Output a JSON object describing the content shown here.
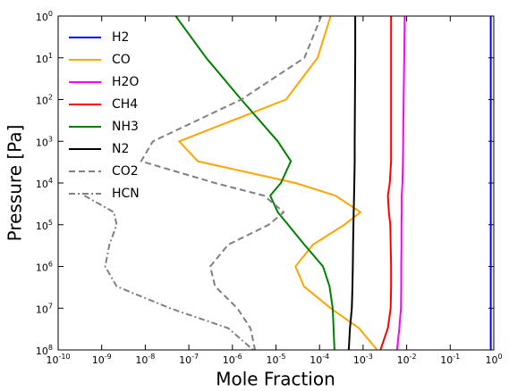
{
  "chart_data": {
    "type": "line",
    "xlabel": "Mole Fraction",
    "ylabel": "Pressure [Pa]",
    "xscale": "log",
    "yscale": "log",
    "y_inverted": true,
    "xlim": [
      1e-10,
      1
    ],
    "ylim": [
      1,
      100000000
    ],
    "xticks": [
      {
        "value": 1e-10,
        "label": "10^-10"
      },
      {
        "value": 1e-09,
        "label": "10^-9"
      },
      {
        "value": 1e-08,
        "label": "10^-8"
      },
      {
        "value": 1e-07,
        "label": "10^-7"
      },
      {
        "value": 1e-06,
        "label": "10^-6"
      },
      {
        "value": 1e-05,
        "label": "10^-5"
      },
      {
        "value": 0.0001,
        "label": "10^-4"
      },
      {
        "value": 0.001,
        "label": "10^-3"
      },
      {
        "value": 0.01,
        "label": "10^-2"
      },
      {
        "value": 0.1,
        "label": "10^-1"
      },
      {
        "value": 1,
        "label": "10^0"
      }
    ],
    "yticks": [
      {
        "value": 1,
        "label": "10^0"
      },
      {
        "value": 10,
        "label": "10^1"
      },
      {
        "value": 100,
        "label": "10^2"
      },
      {
        "value": 1000,
        "label": "10^3"
      },
      {
        "value": 10000,
        "label": "10^4"
      },
      {
        "value": 100000,
        "label": "10^5"
      },
      {
        "value": 1000000,
        "label": "10^6"
      },
      {
        "value": 10000000,
        "label": "10^7"
      },
      {
        "value": 100000000,
        "label": "10^8"
      }
    ],
    "legend": "upper left",
    "y": [
      1,
      10,
      100,
      1000,
      3000,
      10000,
      20000,
      50000,
      100000,
      300000,
      1000000,
      3000000,
      10000000,
      30000000,
      100000000
    ],
    "series": [
      {
        "name": "H2",
        "color": "#0000ff",
        "dash": "solid",
        "values": [
          0.85,
          0.85,
          0.85,
          0.85,
          0.85,
          0.85,
          0.85,
          0.85,
          0.85,
          0.85,
          0.85,
          0.85,
          0.85,
          0.85,
          0.85
        ]
      },
      {
        "name": "CO",
        "color": "#ffa500",
        "dash": "solid",
        "values": [
          0.00018,
          9e-05,
          1.7e-05,
          6e-08,
          1.6e-07,
          2.8e-05,
          0.00023,
          0.00087,
          0.00037,
          7e-05,
          2.8e-05,
          4.4e-05,
          0.00018,
          0.0008,
          0.0021
        ]
      },
      {
        "name": "H2O",
        "color": "#ff00ff",
        "dash": "solid",
        "values": [
          0.009,
          0.0088,
          0.0085,
          0.0083,
          0.0082,
          0.008,
          0.0077,
          0.0077,
          0.0076,
          0.0076,
          0.0075,
          0.0075,
          0.0074,
          0.0068,
          0.006
        ]
      },
      {
        "name": "CH4",
        "color": "#ff0000",
        "dash": "solid",
        "values": [
          0.0044,
          0.0044,
          0.0044,
          0.0044,
          0.0044,
          0.0041,
          0.0037,
          0.0039,
          0.0042,
          0.0043,
          0.0044,
          0.0044,
          0.0043,
          0.0037,
          0.0025
        ]
      },
      {
        "name": "NH3",
        "color": "#008000",
        "dash": "solid",
        "values": [
          5e-08,
          2.5e-07,
          1.6e-06,
          1.1e-05,
          2.2e-05,
          1.3e-05,
          7.4e-06,
          1.1e-05,
          1.9e-05,
          4.5e-05,
          0.00012,
          0.00017,
          0.0002,
          0.00021,
          0.00022
        ]
      },
      {
        "name": "N2",
        "color": "#000000",
        "dash": "solid",
        "values": [
          0.00066,
          0.00066,
          0.00065,
          0.00064,
          0.00064,
          0.00063,
          0.00062,
          0.00061,
          0.0006,
          0.00059,
          0.00058,
          0.00057,
          0.00055,
          0.0005,
          0.00047
        ]
      },
      {
        "name": "CO2",
        "color": "#808080",
        "dash": "dashed",
        "values": [
          0.00011,
          4.5e-05,
          1.6e-06,
          1.5e-08,
          8e-09,
          4e-07,
          5.3e-06,
          1.5e-05,
          6.8e-06,
          8e-07,
          3.1e-07,
          4e-07,
          1.3e-06,
          2.6e-06,
          3.3e-06
        ]
      },
      {
        "name": "HCN",
        "color": "#808080",
        "dash": "dashdot",
        "values": [
          null,
          null,
          null,
          null,
          null,
          null,
          4e-10,
          1.9e-09,
          2.2e-09,
          1.5e-09,
          1.2e-09,
          2.2e-09,
          3.7e-08,
          8e-07,
          3e-06
        ]
      }
    ]
  }
}
